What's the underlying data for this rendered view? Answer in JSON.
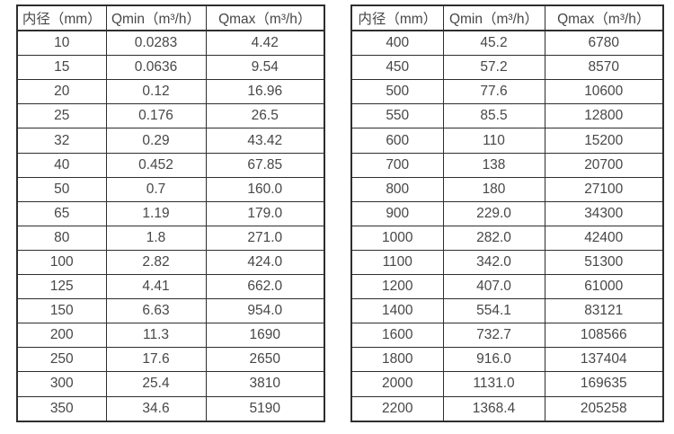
{
  "tables": [
    {
      "id": "left",
      "headers": [
        "内径（mm）",
        "Qmin（m³/h）",
        "Qmax（m³/h）"
      ],
      "rows": [
        [
          "10",
          "0.0283",
          "4.42"
        ],
        [
          "15",
          "0.0636",
          "9.54"
        ],
        [
          "20",
          "0.12",
          "16.96"
        ],
        [
          "25",
          "0.176",
          "26.5"
        ],
        [
          "32",
          "0.29",
          "43.42"
        ],
        [
          "40",
          "0.452",
          "67.85"
        ],
        [
          "50",
          "0.7",
          "160.0"
        ],
        [
          "65",
          "1.19",
          "179.0"
        ],
        [
          "80",
          "1.8",
          "271.0"
        ],
        [
          "100",
          "2.82",
          "424.0"
        ],
        [
          "125",
          "4.41",
          "662.0"
        ],
        [
          "150",
          "6.63",
          "954.0"
        ],
        [
          "200",
          "11.3",
          "1690"
        ],
        [
          "250",
          "17.6",
          "2650"
        ],
        [
          "300",
          "25.4",
          "3810"
        ],
        [
          "350",
          "34.6",
          "5190"
        ]
      ]
    },
    {
      "id": "right",
      "headers": [
        "内径（mm）",
        "Qmin（m³/h）",
        "Qmax（m³/h）"
      ],
      "rows": [
        [
          "400",
          "45.2",
          "6780"
        ],
        [
          "450",
          "57.2",
          "8570"
        ],
        [
          "500",
          "77.6",
          "10600"
        ],
        [
          "550",
          "85.5",
          "12800"
        ],
        [
          "600",
          "110",
          "15200"
        ],
        [
          "700",
          "138",
          "20700"
        ],
        [
          "800",
          "180",
          "27100"
        ],
        [
          "900",
          "229.0",
          "34300"
        ],
        [
          "1000",
          "282.0",
          "42400"
        ],
        [
          "1100",
          "342.0",
          "51300"
        ],
        [
          "1200",
          "407.0",
          "61000"
        ],
        [
          "1400",
          "554.1",
          "83121"
        ],
        [
          "1600",
          "732.7",
          "108566"
        ],
        [
          "1800",
          "916.0",
          "137404"
        ],
        [
          "2000",
          "1131.0",
          "169635"
        ],
        [
          "2200",
          "1368.4",
          "205258"
        ]
      ]
    }
  ],
  "colors": {
    "border": "#2e2e2e",
    "text": "#474747",
    "background": "#ffffff"
  }
}
